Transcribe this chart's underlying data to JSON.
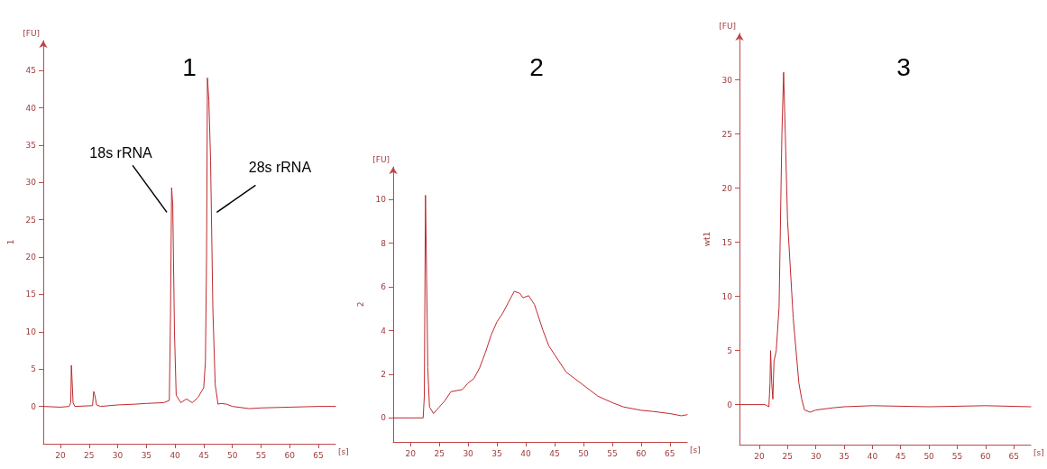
{
  "chart_data": [
    {
      "type": "line",
      "title": "1",
      "xlabel": "[s]",
      "ylabel": "[FU]",
      "annotations": [
        "1",
        {
          "text": "18s rRNA",
          "x": 39.2,
          "y": 26
        },
        {
          "text": "28s rRNA",
          "x": 46.5,
          "y": 26
        }
      ],
      "xlim": [
        17,
        68
      ],
      "xticks": [
        20,
        25,
        30,
        35,
        40,
        45,
        50,
        55,
        60,
        65
      ],
      "ylim": [
        -5,
        49
      ],
      "yticks": [
        0,
        5,
        10,
        15,
        20,
        25,
        30,
        35,
        40,
        45
      ],
      "grid": false,
      "marker": "none",
      "line_style": "solid",
      "series": [
        {
          "color": "#c0282d",
          "x": [
            17,
            20,
            21.5,
            21.8,
            21.9,
            22.0,
            22.2,
            22.5,
            25.6,
            25.8,
            26.0,
            26.3,
            27,
            30,
            33,
            35,
            38,
            39,
            39.2,
            39.4,
            39.6,
            39.9,
            40.2,
            41,
            42,
            43,
            44,
            45,
            45.3,
            45.5,
            45.65,
            45.9,
            46.2,
            46.6,
            47,
            47.5,
            48,
            49,
            50,
            53,
            55,
            60,
            65,
            68
          ],
          "values": [
            0,
            -0.1,
            0,
            0.5,
            5.5,
            4,
            0.5,
            0,
            0.1,
            2,
            1.5,
            0.2,
            0,
            0.2,
            0.3,
            0.4,
            0.5,
            0.8,
            12,
            29.3,
            27,
            10,
            1.5,
            0.5,
            1,
            0.5,
            1.2,
            2.5,
            6,
            20,
            44,
            41,
            33,
            13,
            3,
            0.3,
            0.4,
            0.3,
            0,
            -0.3,
            -0.2,
            -0.1,
            0,
            0
          ]
        }
      ]
    },
    {
      "type": "line",
      "title": "2",
      "xlabel": "[s]",
      "ylabel": "[FU]",
      "annotations": [
        "2"
      ],
      "xlim": [
        17,
        68
      ],
      "xticks": [
        20,
        25,
        30,
        35,
        40,
        45,
        50,
        55,
        60,
        65
      ],
      "ylim": [
        -1.1,
        11.5
      ],
      "yticks": [
        0,
        2,
        4,
        6,
        8,
        10
      ],
      "grid": false,
      "marker": "none",
      "line_style": "solid",
      "series": [
        {
          "color": "#c0282d",
          "x": [
            17,
            20,
            22.2,
            22.4,
            22.6,
            22.8,
            23.0,
            23.3,
            24,
            25,
            26,
            27,
            29,
            30,
            31,
            32,
            33,
            34,
            35,
            36,
            37,
            38,
            39,
            39.5,
            40.5,
            41.5,
            42,
            43,
            44,
            45,
            47,
            50,
            52.5,
            55,
            57,
            60,
            62,
            65,
            67,
            68
          ],
          "values": [
            0,
            0,
            0,
            1,
            10.2,
            6.4,
            2.3,
            0.5,
            0.2,
            0.5,
            0.8,
            1.2,
            1.3,
            1.6,
            1.8,
            2.3,
            3,
            3.8,
            4.4,
            4.8,
            5.3,
            5.8,
            5.7,
            5.5,
            5.6,
            5.2,
            4.8,
            4,
            3.3,
            2.9,
            2.1,
            1.5,
            1.0,
            0.7,
            0.5,
            0.35,
            0.3,
            0.2,
            0.1,
            0.15
          ]
        }
      ]
    },
    {
      "type": "line",
      "title": "3",
      "xlabel": "[s]",
      "ylabel": "[FU]",
      "annotations": [
        "wt1"
      ],
      "xlim": [
        16.5,
        68
      ],
      "xticks": [
        20,
        25,
        30,
        35,
        40,
        45,
        50,
        55,
        60,
        65
      ],
      "ylim": [
        -3.7,
        34.3
      ],
      "yticks": [
        0,
        5,
        10,
        15,
        20,
        25,
        30
      ],
      "grid": false,
      "marker": "none",
      "line_style": "solid",
      "series": [
        {
          "color": "#c0282d",
          "x": [
            16.5,
            21,
            21.7,
            21.9,
            22.0,
            22.2,
            22.4,
            22.6,
            23,
            23.5,
            24,
            24.3,
            24.6,
            25,
            26,
            27,
            27.5,
            28,
            29,
            30,
            33,
            35,
            40,
            50,
            60,
            68
          ],
          "values": [
            0,
            0,
            -0.2,
            2,
            5,
            2,
            0.5,
            4,
            5,
            9,
            25,
            30.7,
            25,
            17,
            8,
            2,
            0.5,
            -0.5,
            -0.7,
            -0.5,
            -0.3,
            -0.2,
            -0.1,
            -0.2,
            -0.1,
            -0.2
          ]
        }
      ]
    }
  ]
}
